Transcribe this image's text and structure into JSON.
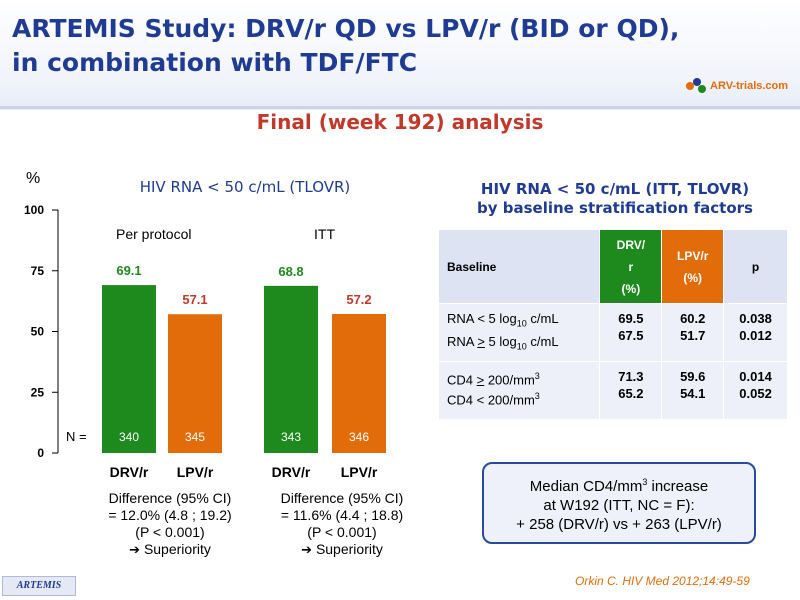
{
  "header": {
    "title_line1": "ARTEMIS Study: DRV/r QD vs LPV/r (BID or QD),",
    "title_line2": "in combination with TDF/FTC",
    "logo_text": "ARV-trials.com",
    "subtitle": "Final (week 192) analysis"
  },
  "chart_data": {
    "type": "bar",
    "title": "HIV RNA < 50 c/mL (TLOVR)",
    "ylabel": "%",
    "ylim": [
      0,
      100
    ],
    "yticks": [
      "0",
      "25",
      "50",
      "75",
      "100"
    ],
    "groups": [
      "Per protocol",
      "ITT"
    ],
    "categories": [
      "DRV/r",
      "LPV/r",
      "DRV/r",
      "LPV/r"
    ],
    "values": [
      69.1,
      57.1,
      68.8,
      57.2
    ],
    "value_labels": [
      "69.1",
      "57.1",
      "68.8",
      "57.2"
    ],
    "n_label": "N =",
    "n_values": [
      "340",
      "345",
      "343",
      "346"
    ],
    "colors": [
      "#1e8a1e",
      "#e36c0a",
      "#1e8a1e",
      "#e36c0a"
    ],
    "value_label_colors": [
      "#1e8a1e",
      "#c0392b",
      "#1e8a1e",
      "#c0392b"
    ]
  },
  "differences": [
    {
      "line1": "Difference (95% CI)",
      "line2": "= 12.0% (4.8 ; 19.2)",
      "line3": "(P < 0.001)",
      "line4": "Superiority"
    },
    {
      "line1": "Difference (95% CI)",
      "line2": "= 11.6% (4.4 ; 18.8)",
      "line3": "(P < 0.001)",
      "line4": "Superiority"
    }
  ],
  "table": {
    "title_line1": "HIV RNA < 50 c/mL (ITT, TLOVR)",
    "title_line2": "by baseline stratification factors",
    "head": {
      "baseline": "Baseline",
      "drv_1": "DRV/",
      "drv_2": "r",
      "drv_3": "(%)",
      "lpv_1": "LPV/r",
      "lpv_2": "(%)",
      "p": "p"
    },
    "rows": [
      {
        "a_pre": "RNA < 5 log",
        "a_sub": "10",
        "a_post": " c/mL",
        "b_pre": "RNA ",
        "b_sym": ">",
        "b_mid": " 5 log",
        "b_sub": "10",
        "b_post": " c/mL",
        "drv": [
          "69.5",
          "67.5"
        ],
        "lpv": [
          "60.2",
          "51.7"
        ],
        "p": [
          "0.038",
          "0.012"
        ]
      },
      {
        "a_pre": "CD4 ",
        "a_sym": ">",
        "a_mid": " 200/mm",
        "a_sup": "3",
        "b_pre": "CD4 < 200/mm",
        "b_sup": "3",
        "drv": [
          "71.3",
          "65.2"
        ],
        "lpv": [
          "59.6",
          "54.1"
        ],
        "p": [
          "0.014",
          "0.052"
        ]
      }
    ]
  },
  "cd4_box": {
    "line1_pre": "Median CD4/mm",
    "line1_sup": "3",
    "line1_post": " increase",
    "line2": "at W192 (ITT, NC = F):",
    "line3": "+ 258 (DRV/r) vs + 263 (LPV/r)"
  },
  "footer": {
    "citation": "Orkin C. HIV Med 2012;14:49-59",
    "tag": "ARTEMIS"
  }
}
